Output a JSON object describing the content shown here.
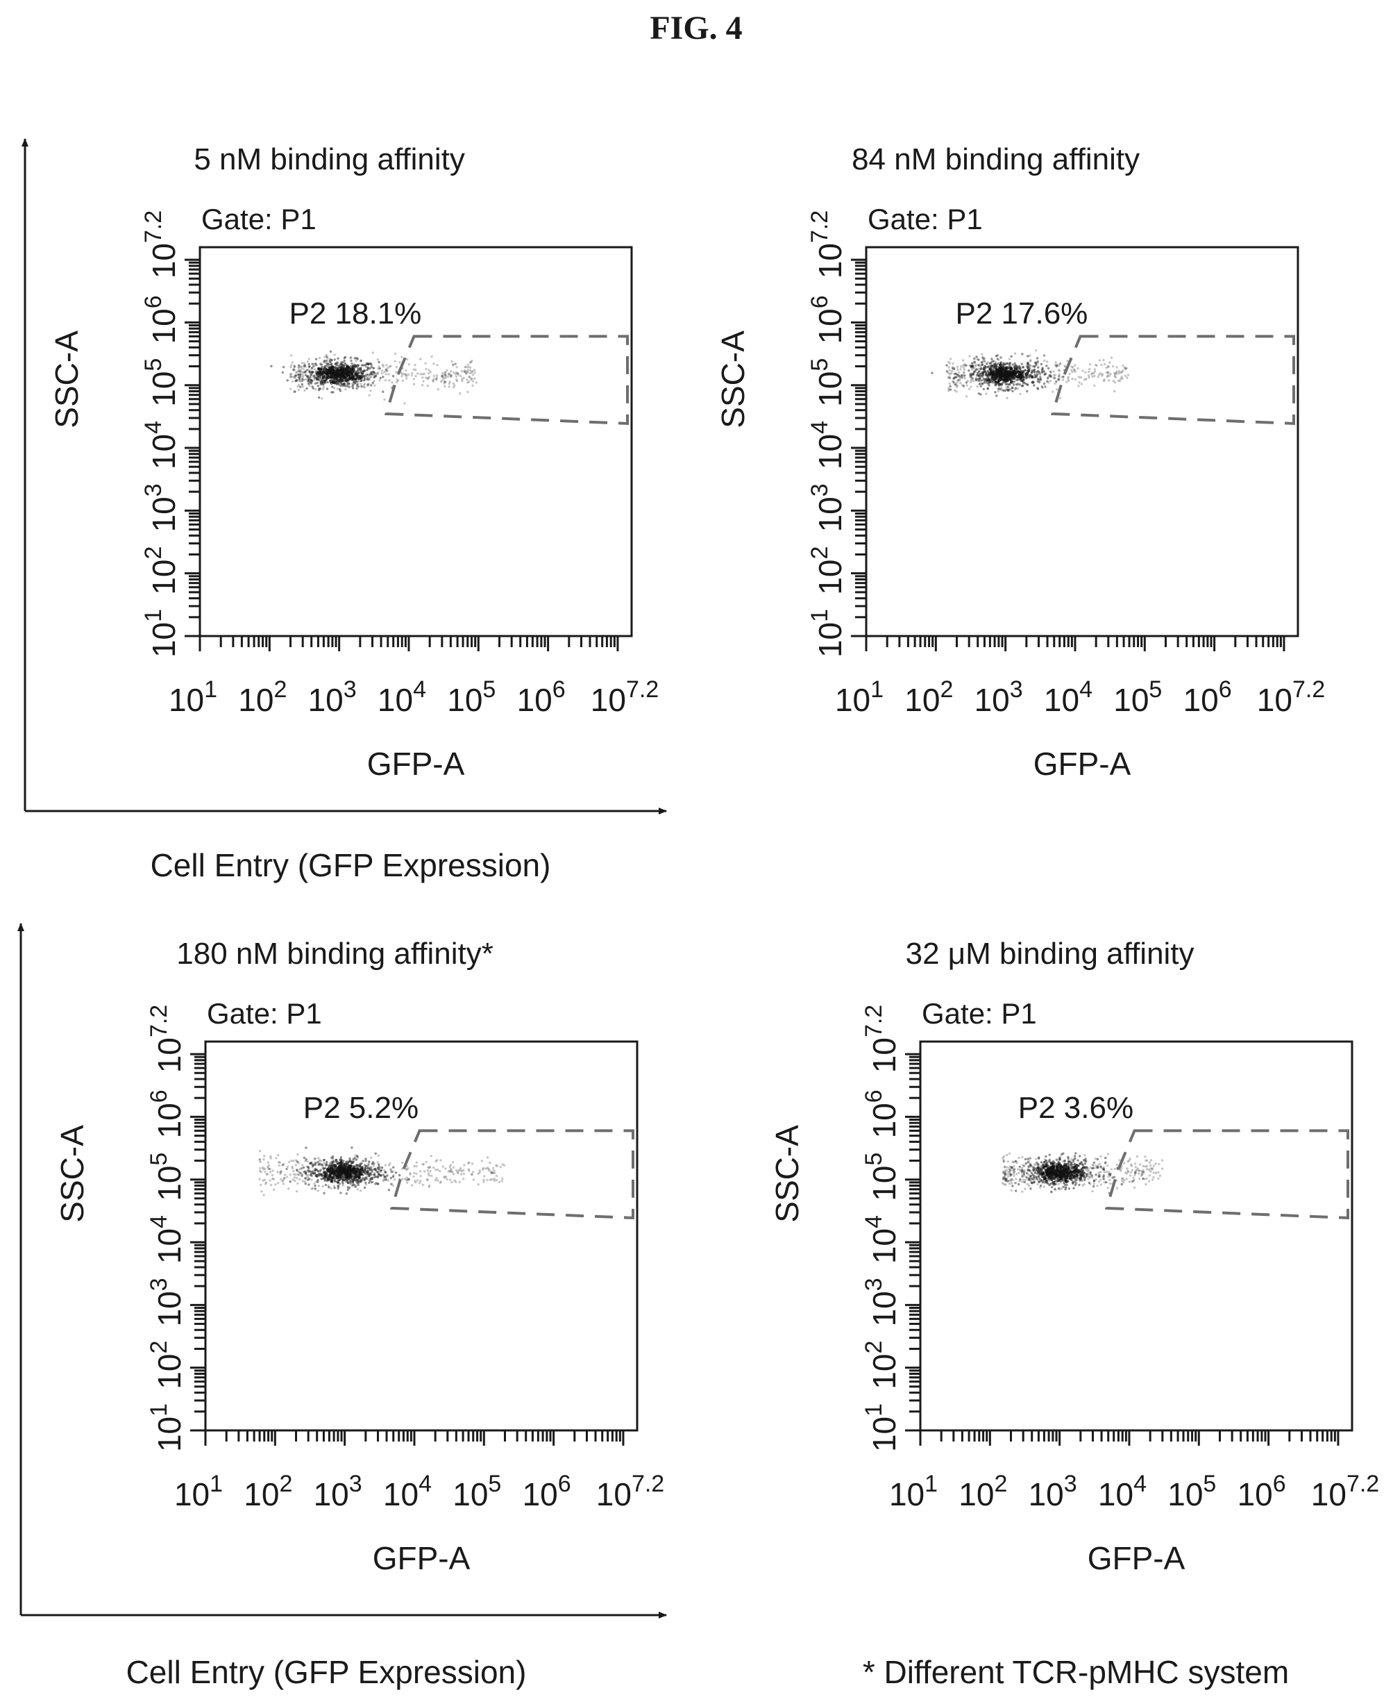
{
  "figure_title": "FIG. 4",
  "outer_arrows": [
    {
      "xlabel": "Cell Entry (GFP Expression)"
    },
    {
      "xlabel": "Cell Entry (GFP Expression)"
    }
  ],
  "footnote": "* Different TCR-pMHC system",
  "ink_color": "#1a1a1a",
  "gate_color": "#6e6e6e",
  "chart_data": [
    {
      "type": "scatter",
      "title": "5 nM binding affinity",
      "gate_label": "Gate: P1",
      "xlabel": "GFP-A",
      "ylabel": "SSC-A",
      "xscale": "log",
      "yscale": "log",
      "xlim": [
        10,
        15848932
      ],
      "ylim": [
        10,
        15848932
      ],
      "xticks": [
        {
          "base": "10",
          "exp": "1"
        },
        {
          "base": "10",
          "exp": "2"
        },
        {
          "base": "10",
          "exp": "3"
        },
        {
          "base": "10",
          "exp": "4"
        },
        {
          "base": "10",
          "exp": "5"
        },
        {
          "base": "10",
          "exp": "6"
        },
        {
          "base": "10",
          "exp": "7.2"
        }
      ],
      "yticks": [
        {
          "base": "10",
          "exp": "1"
        },
        {
          "base": "10",
          "exp": "2"
        },
        {
          "base": "10",
          "exp": "3"
        },
        {
          "base": "10",
          "exp": "4"
        },
        {
          "base": "10",
          "exp": "5"
        },
        {
          "base": "10",
          "exp": "6"
        },
        {
          "base": "10",
          "exp": "7.2"
        }
      ],
      "population": {
        "center": [
          1000,
          150000
        ],
        "x_range": [
          200,
          100000
        ]
      },
      "gate": {
        "name": "P2",
        "percent": "18.1%",
        "label": "P2 18.1%",
        "x_range": [
          3000,
          15848932
        ],
        "y_range": [
          30000,
          600000
        ]
      }
    },
    {
      "type": "scatter",
      "title": "84 nM binding affinity",
      "gate_label": "Gate: P1",
      "xlabel": "GFP-A",
      "ylabel": "SSC-A",
      "xscale": "log",
      "yscale": "log",
      "xlim": [
        10,
        15848932
      ],
      "ylim": [
        10,
        15848932
      ],
      "xticks": [
        {
          "base": "10",
          "exp": "1"
        },
        {
          "base": "10",
          "exp": "2"
        },
        {
          "base": "10",
          "exp": "3"
        },
        {
          "base": "10",
          "exp": "4"
        },
        {
          "base": "10",
          "exp": "5"
        },
        {
          "base": "10",
          "exp": "6"
        },
        {
          "base": "10",
          "exp": "7.2"
        }
      ],
      "yticks": [
        {
          "base": "10",
          "exp": "1"
        },
        {
          "base": "10",
          "exp": "2"
        },
        {
          "base": "10",
          "exp": "3"
        },
        {
          "base": "10",
          "exp": "4"
        },
        {
          "base": "10",
          "exp": "5"
        },
        {
          "base": "10",
          "exp": "6"
        },
        {
          "base": "10",
          "exp": "7.2"
        }
      ],
      "population": {
        "center": [
          1000,
          150000
        ],
        "x_range": [
          150,
          60000
        ]
      },
      "gate": {
        "name": "P2",
        "percent": "17.6%",
        "label": "P2 17.6%",
        "x_range": [
          3000,
          15848932
        ],
        "y_range": [
          30000,
          600000
        ]
      }
    },
    {
      "type": "scatter",
      "title": "180 nM binding affinity*",
      "gate_label": "Gate: P1",
      "xlabel": "GFP-A",
      "ylabel": "SSC-A",
      "xscale": "log",
      "yscale": "log",
      "xlim": [
        10,
        15848932
      ],
      "ylim": [
        10,
        15848932
      ],
      "xticks": [
        {
          "base": "10",
          "exp": "1"
        },
        {
          "base": "10",
          "exp": "2"
        },
        {
          "base": "10",
          "exp": "3"
        },
        {
          "base": "10",
          "exp": "4"
        },
        {
          "base": "10",
          "exp": "5"
        },
        {
          "base": "10",
          "exp": "6"
        },
        {
          "base": "10",
          "exp": "7.2"
        }
      ],
      "yticks": [
        {
          "base": "10",
          "exp": "1"
        },
        {
          "base": "10",
          "exp": "2"
        },
        {
          "base": "10",
          "exp": "3"
        },
        {
          "base": "10",
          "exp": "4"
        },
        {
          "base": "10",
          "exp": "5"
        },
        {
          "base": "10",
          "exp": "6"
        },
        {
          "base": "10",
          "exp": "7.2"
        }
      ],
      "population": {
        "center": [
          1000,
          130000
        ],
        "x_range": [
          60,
          200000
        ]
      },
      "gate": {
        "name": "P2",
        "percent": "5.2%",
        "label": "P2 5.2%",
        "x_range": [
          3000,
          15848932
        ],
        "y_range": [
          30000,
          600000
        ]
      }
    },
    {
      "type": "scatter",
      "title": "32 μM binding affinity",
      "gate_label": "Gate: P1",
      "xlabel": "GFP-A",
      "ylabel": "SSC-A",
      "xscale": "log",
      "yscale": "log",
      "xlim": [
        10,
        15848932
      ],
      "ylim": [
        10,
        15848932
      ],
      "xticks": [
        {
          "base": "10",
          "exp": "1"
        },
        {
          "base": "10",
          "exp": "2"
        },
        {
          "base": "10",
          "exp": "3"
        },
        {
          "base": "10",
          "exp": "4"
        },
        {
          "base": "10",
          "exp": "5"
        },
        {
          "base": "10",
          "exp": "6"
        },
        {
          "base": "10",
          "exp": "7.2"
        }
      ],
      "yticks": [
        {
          "base": "10",
          "exp": "1"
        },
        {
          "base": "10",
          "exp": "2"
        },
        {
          "base": "10",
          "exp": "3"
        },
        {
          "base": "10",
          "exp": "4"
        },
        {
          "base": "10",
          "exp": "5"
        },
        {
          "base": "10",
          "exp": "6"
        },
        {
          "base": "10",
          "exp": "7.2"
        }
      ],
      "population": {
        "center": [
          1000,
          130000
        ],
        "x_range": [
          150,
          30000
        ]
      },
      "gate": {
        "name": "P2",
        "percent": "3.6%",
        "label": "P2 3.6%",
        "x_range": [
          3000,
          15848932
        ],
        "y_range": [
          30000,
          600000
        ]
      }
    }
  ]
}
